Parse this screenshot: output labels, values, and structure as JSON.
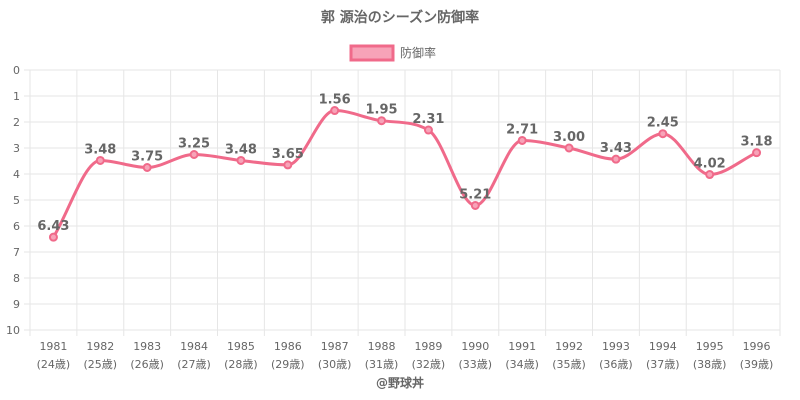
{
  "chart_data": {
    "type": "line",
    "title": "郭 源治のシーズン防御率",
    "legend": {
      "label": "防御率",
      "position": "top"
    },
    "x": [
      "1981",
      "1982",
      "1983",
      "1984",
      "1985",
      "1986",
      "1987",
      "1988",
      "1989",
      "1990",
      "1991",
      "1992",
      "1993",
      "1994",
      "1995",
      "1996"
    ],
    "x_sublabels": [
      "(24歳)",
      "(25歳)",
      "(26歳)",
      "(27歳)",
      "(28歳)",
      "(29歳)",
      "(30歳)",
      "(31歳)",
      "(32歳)",
      "(33歳)",
      "(34歳)",
      "(35歳)",
      "(36歳)",
      "(37歳)",
      "(38歳)",
      "(39歳)"
    ],
    "series": [
      {
        "name": "防御率",
        "values": [
          6.43,
          3.48,
          3.75,
          3.25,
          3.48,
          3.65,
          1.56,
          1.95,
          2.31,
          5.21,
          2.71,
          3.0,
          3.43,
          2.45,
          4.02,
          3.18
        ],
        "value_labels": [
          "6.43",
          "3.48",
          "3.75",
          "3.25",
          "3.48",
          "3.65",
          "1.56",
          "1.95",
          "2.31",
          "5.21",
          "2.71",
          "3.00",
          "3.43",
          "2.45",
          "4.02",
          "3.18"
        ]
      }
    ],
    "y_ticks": [
      "0",
      "1",
      "2",
      "3",
      "4",
      "5",
      "6",
      "7",
      "8",
      "9",
      "10"
    ],
    "ylim": [
      0,
      10
    ],
    "y_reversed": true,
    "grid": true,
    "colors": {
      "line": "#f06a8a",
      "fill": "#f7a3b8",
      "grid": "#e6e6e6",
      "text": "#666666"
    }
  },
  "footer": "@野球丼"
}
